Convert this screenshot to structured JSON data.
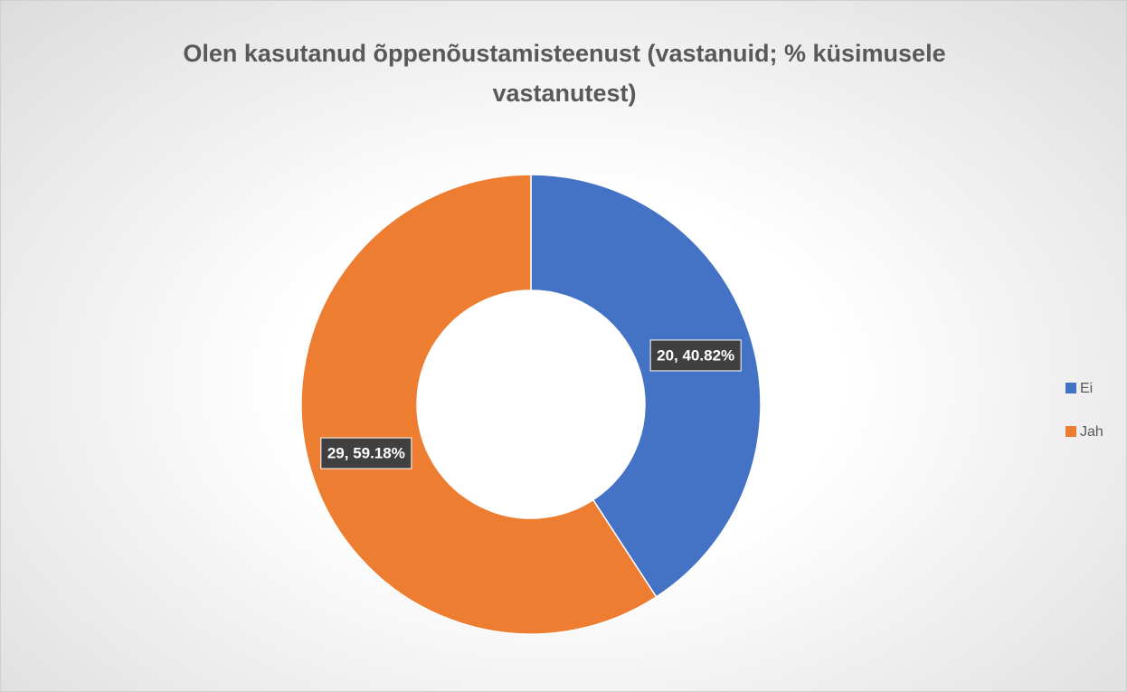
{
  "chart_data": {
    "type": "donut",
    "title": "Olen kasutanud õppenõustamisteenust (vastanuid; % küsimusele vastanutest)",
    "categories": [
      "Ei",
      "Jah"
    ],
    "values": [
      20,
      29
    ],
    "value_labels": [
      "20, 40.82%",
      "29, 59.18%"
    ],
    "colors": [
      "#4472c4",
      "#ed7d31"
    ],
    "legend": "right"
  }
}
